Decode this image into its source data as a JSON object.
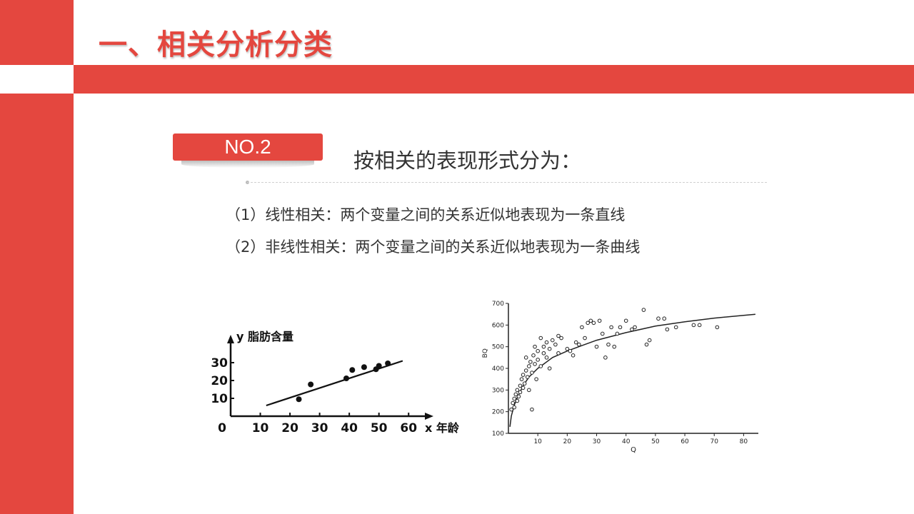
{
  "slide": {
    "title": "一、相关分析分类",
    "badge": "NO.2",
    "subtitle": "按相关的表现形式分为：",
    "items": [
      "（1）线性相关：两个变量之间的关系近似地表现为一条直线",
      "（2）非线性相关：两个变量之间的关系近似地表现为一条曲线"
    ]
  },
  "colors": {
    "accent": "#e4473f",
    "text": "#333333"
  },
  "chart_data": [
    {
      "type": "scatter",
      "title": "",
      "ylabel": "y 脂肪含量",
      "xlabel": "x 年龄",
      "origin_label": "0",
      "x_ticks": [
        10,
        20,
        30,
        40,
        50,
        60
      ],
      "y_ticks": [
        10,
        20,
        30
      ],
      "xlim": [
        0,
        65
      ],
      "ylim": [
        0,
        40
      ],
      "points": [
        {
          "x": 23,
          "y": 9.5
        },
        {
          "x": 27,
          "y": 17.8
        },
        {
          "x": 39,
          "y": 21.2
        },
        {
          "x": 41,
          "y": 25.9
        },
        {
          "x": 45,
          "y": 27.5
        },
        {
          "x": 49,
          "y": 26.3
        },
        {
          "x": 50,
          "y": 28.2
        },
        {
          "x": 53,
          "y": 29.6
        }
      ],
      "fit_line": [
        {
          "x": 12,
          "y": 6
        },
        {
          "x": 58,
          "y": 31
        }
      ],
      "grid": false
    },
    {
      "type": "scatter",
      "title": "",
      "ylabel": "BQ",
      "xlabel": "Q",
      "x_ticks": [
        10,
        20,
        30,
        40,
        50,
        60,
        70,
        80
      ],
      "y_ticks": [
        100,
        200,
        300,
        400,
        500,
        600,
        700
      ],
      "xlim": [
        0,
        85
      ],
      "ylim": [
        100,
        700
      ],
      "points": [
        {
          "x": 1,
          "y": 210
        },
        {
          "x": 1.5,
          "y": 240
        },
        {
          "x": 2,
          "y": 220
        },
        {
          "x": 2,
          "y": 260
        },
        {
          "x": 2.5,
          "y": 280
        },
        {
          "x": 3,
          "y": 250
        },
        {
          "x": 3,
          "y": 300
        },
        {
          "x": 3.5,
          "y": 270
        },
        {
          "x": 4,
          "y": 320
        },
        {
          "x": 4,
          "y": 290
        },
        {
          "x": 4.5,
          "y": 350
        },
        {
          "x": 5,
          "y": 310
        },
        {
          "x": 5,
          "y": 370
        },
        {
          "x": 5.5,
          "y": 330
        },
        {
          "x": 6,
          "y": 390
        },
        {
          "x": 6,
          "y": 450
        },
        {
          "x": 6.5,
          "y": 360
        },
        {
          "x": 7,
          "y": 410
        },
        {
          "x": 7,
          "y": 300
        },
        {
          "x": 7.5,
          "y": 430
        },
        {
          "x": 8,
          "y": 210
        },
        {
          "x": 8,
          "y": 380
        },
        {
          "x": 8.5,
          "y": 460
        },
        {
          "x": 9,
          "y": 420
        },
        {
          "x": 9,
          "y": 500
        },
        {
          "x": 9.5,
          "y": 350
        },
        {
          "x": 10,
          "y": 440
        },
        {
          "x": 10,
          "y": 480
        },
        {
          "x": 11,
          "y": 410
        },
        {
          "x": 11,
          "y": 540
        },
        {
          "x": 12,
          "y": 470
        },
        {
          "x": 12,
          "y": 500
        },
        {
          "x": 13,
          "y": 450
        },
        {
          "x": 13,
          "y": 520
        },
        {
          "x": 14,
          "y": 400
        },
        {
          "x": 14,
          "y": 490
        },
        {
          "x": 15,
          "y": 530
        },
        {
          "x": 16,
          "y": 510
        },
        {
          "x": 17,
          "y": 550
        },
        {
          "x": 17,
          "y": 470
        },
        {
          "x": 18,
          "y": 540
        },
        {
          "x": 20,
          "y": 490
        },
        {
          "x": 21,
          "y": 480
        },
        {
          "x": 22,
          "y": 460
        },
        {
          "x": 23,
          "y": 520
        },
        {
          "x": 24,
          "y": 510
        },
        {
          "x": 25,
          "y": 590
        },
        {
          "x": 26,
          "y": 540
        },
        {
          "x": 27,
          "y": 610
        },
        {
          "x": 28,
          "y": 620
        },
        {
          "x": 29,
          "y": 610
        },
        {
          "x": 30,
          "y": 500
        },
        {
          "x": 31,
          "y": 620
        },
        {
          "x": 32,
          "y": 560
        },
        {
          "x": 33,
          "y": 450
        },
        {
          "x": 34,
          "y": 510
        },
        {
          "x": 35,
          "y": 590
        },
        {
          "x": 36,
          "y": 500
        },
        {
          "x": 37,
          "y": 560
        },
        {
          "x": 38,
          "y": 590
        },
        {
          "x": 40,
          "y": 620
        },
        {
          "x": 42,
          "y": 580
        },
        {
          "x": 43,
          "y": 590
        },
        {
          "x": 46,
          "y": 670
        },
        {
          "x": 47,
          "y": 510
        },
        {
          "x": 48,
          "y": 530
        },
        {
          "x": 51,
          "y": 630
        },
        {
          "x": 53,
          "y": 630
        },
        {
          "x": 54,
          "y": 580
        },
        {
          "x": 57,
          "y": 590
        },
        {
          "x": 63,
          "y": 600
        },
        {
          "x": 65,
          "y": 600
        },
        {
          "x": 71,
          "y": 590
        }
      ],
      "fit_curve": [
        {
          "x": 0.5,
          "y": 130
        },
        {
          "x": 1,
          "y": 180
        },
        {
          "x": 2,
          "y": 230
        },
        {
          "x": 3,
          "y": 265
        },
        {
          "x": 5,
          "y": 320
        },
        {
          "x": 7,
          "y": 360
        },
        {
          "x": 10,
          "y": 400
        },
        {
          "x": 15,
          "y": 450
        },
        {
          "x": 20,
          "y": 480
        },
        {
          "x": 25,
          "y": 505
        },
        {
          "x": 30,
          "y": 530
        },
        {
          "x": 40,
          "y": 565
        },
        {
          "x": 50,
          "y": 595
        },
        {
          "x": 60,
          "y": 615
        },
        {
          "x": 70,
          "y": 632
        },
        {
          "x": 80,
          "y": 645
        },
        {
          "x": 84,
          "y": 650
        }
      ],
      "grid": false
    }
  ]
}
